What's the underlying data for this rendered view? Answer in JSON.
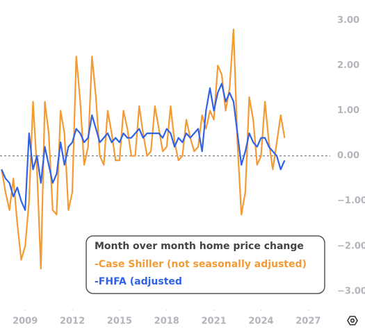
{
  "chart_data": {
    "type": "line",
    "title": "Month over month home price change",
    "x": [
      2007.5,
      2007.75,
      2008,
      2008.25,
      2008.5,
      2008.75,
      2009,
      2009.25,
      2009.5,
      2009.75,
      2010,
      2010.25,
      2010.5,
      2010.75,
      2011,
      2011.25,
      2011.5,
      2011.75,
      2012,
      2012.25,
      2012.5,
      2012.75,
      2013,
      2013.25,
      2013.5,
      2013.75,
      2014,
      2014.25,
      2014.5,
      2014.75,
      2015,
      2015.25,
      2015.5,
      2015.75,
      2016,
      2016.25,
      2016.5,
      2016.75,
      2017,
      2017.25,
      2017.5,
      2017.75,
      2018,
      2018.25,
      2018.5,
      2018.75,
      2019,
      2019.25,
      2019.5,
      2019.75,
      2020,
      2020.25,
      2020.5,
      2020.75,
      2021,
      2021.25,
      2021.5,
      2021.75,
      2022,
      2022.25,
      2022.5,
      2022.75,
      2023,
      2023.25,
      2023.5,
      2023.75,
      2024,
      2024.25,
      2024.5,
      2024.75,
      2025,
      2025.25,
      2025.5
    ],
    "series": [
      {
        "name": "-Case Shiller (not seasonally adjusted)",
        "color": "#f39a33",
        "values": [
          -0.3,
          -0.8,
          -1.2,
          -0.5,
          -1.5,
          -2.3,
          -2.0,
          -1.0,
          1.2,
          -0.3,
          -2.5,
          1.2,
          0.5,
          -1.2,
          -1.3,
          1.0,
          0.5,
          -1.2,
          -0.8,
          2.2,
          1.2,
          -0.2,
          0.2,
          2.2,
          1.3,
          0.0,
          -0.2,
          1.0,
          0.5,
          -0.1,
          -0.1,
          1.0,
          0.6,
          0.0,
          0.0,
          1.1,
          0.5,
          0.0,
          0.1,
          1.1,
          0.6,
          0.1,
          0.2,
          1.1,
          0.3,
          -0.1,
          0.0,
          0.8,
          0.4,
          0.1,
          0.2,
          0.9,
          0.6,
          1.0,
          0.8,
          2.0,
          1.8,
          1.0,
          1.5,
          2.8,
          0.3,
          -1.3,
          -0.8,
          1.3,
          0.8,
          -0.2,
          0.0,
          1.2,
          0.3,
          -0.3,
          0.3,
          0.9,
          0.4
        ]
      },
      {
        "name": "-FHFA (adjusted",
        "color": "#2f62e6",
        "values": [
          -0.3,
          -0.5,
          -0.6,
          -0.9,
          -0.7,
          -1.0,
          -1.2,
          0.5,
          -0.3,
          0.0,
          -0.6,
          0.2,
          -0.2,
          -0.6,
          -0.4,
          0.3,
          -0.2,
          0.2,
          0.3,
          0.6,
          0.5,
          0.3,
          0.4,
          0.9,
          0.6,
          0.3,
          0.4,
          0.5,
          0.3,
          0.4,
          0.3,
          0.5,
          0.4,
          0.4,
          0.5,
          0.6,
          0.4,
          0.5,
          0.5,
          0.5,
          0.5,
          0.4,
          0.6,
          0.5,
          0.2,
          0.4,
          0.3,
          0.5,
          0.4,
          0.5,
          0.6,
          0.1,
          1.0,
          1.5,
          1.0,
          1.4,
          1.6,
          1.2,
          1.4,
          1.2,
          0.5,
          -0.2,
          0.1,
          0.5,
          0.3,
          0.2,
          0.4,
          0.4,
          0.2,
          0.1,
          0.0,
          -0.3,
          -0.1
        ]
      }
    ],
    "xlim": [
      2007.4,
      2028.4
    ],
    "ylim": [
      -3.4,
      3.45
    ],
    "xticks": [
      2009,
      2012,
      2015,
      2018,
      2021,
      2024,
      2027
    ],
    "yticks": [
      {
        "value": 3,
        "label": "3.00"
      },
      {
        "value": 2,
        "label": "2.00"
      },
      {
        "value": 1,
        "label": "1.00"
      },
      {
        "value": 0,
        "label": "0.00"
      },
      {
        "value": -1,
        "label": "−1.00"
      },
      {
        "value": -2,
        "label": "−2.00"
      },
      {
        "value": -3,
        "label": "−3.00"
      }
    ],
    "zero_line": true
  }
}
